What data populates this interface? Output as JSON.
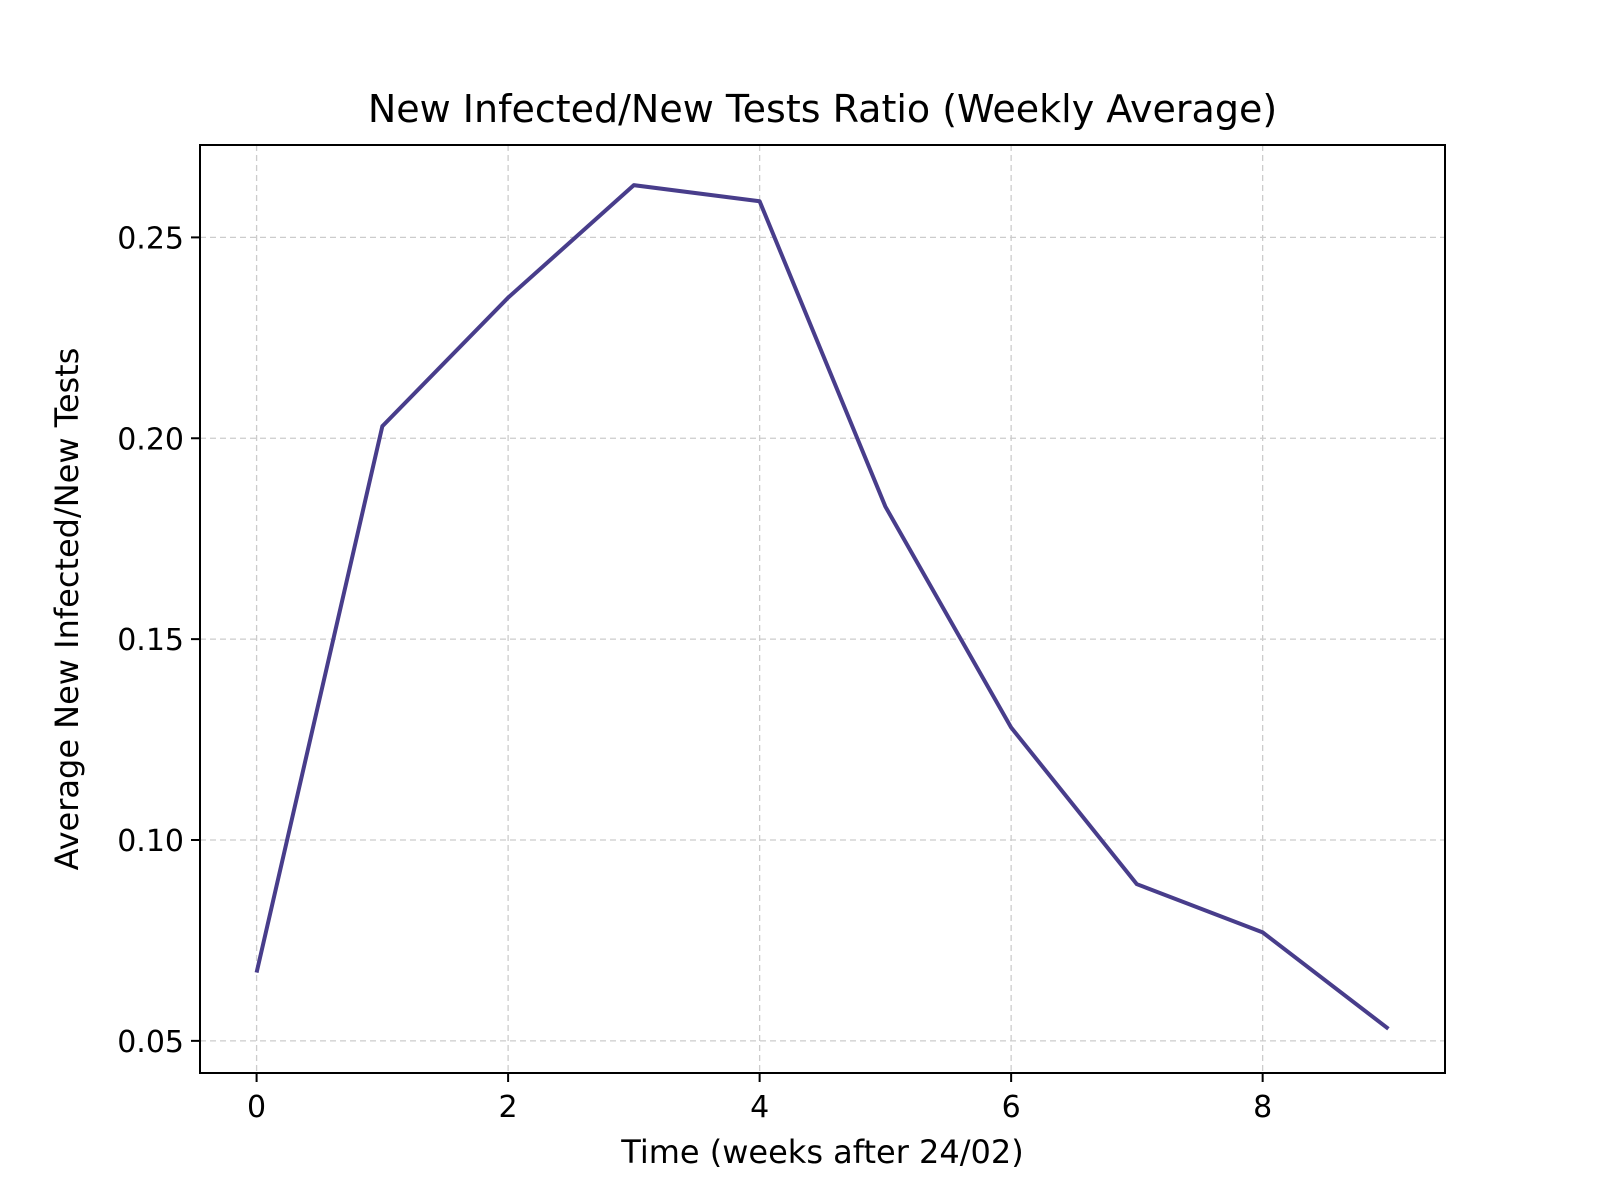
{
  "chart_data": {
    "type": "line",
    "title": "New Infected/New Tests Ratio (Weekly Average)",
    "xlabel": "Time (weeks after 24/02)",
    "ylabel": "Average New Infected/New Tests",
    "x": [
      0,
      1,
      2,
      3,
      4,
      5,
      6,
      7,
      8,
      9
    ],
    "series": [
      {
        "values": [
          0.067,
          0.203,
          0.235,
          0.263,
          0.259,
          0.183,
          0.128,
          0.089,
          0.077,
          0.053
        ],
        "color": "#483d8b"
      }
    ],
    "xlim": [
      -0.45,
      9.45
    ],
    "ylim": [
      0.042,
      0.273
    ],
    "xticks": [
      0,
      2,
      4,
      6,
      8
    ],
    "xtick_labels": [
      "0",
      "2",
      "4",
      "6",
      "8"
    ],
    "yticks": [
      0.05,
      0.1,
      0.15,
      0.2,
      0.25
    ],
    "ytick_labels": [
      "0.05",
      "0.10",
      "0.15",
      "0.20",
      "0.25"
    ],
    "grid": true
  }
}
